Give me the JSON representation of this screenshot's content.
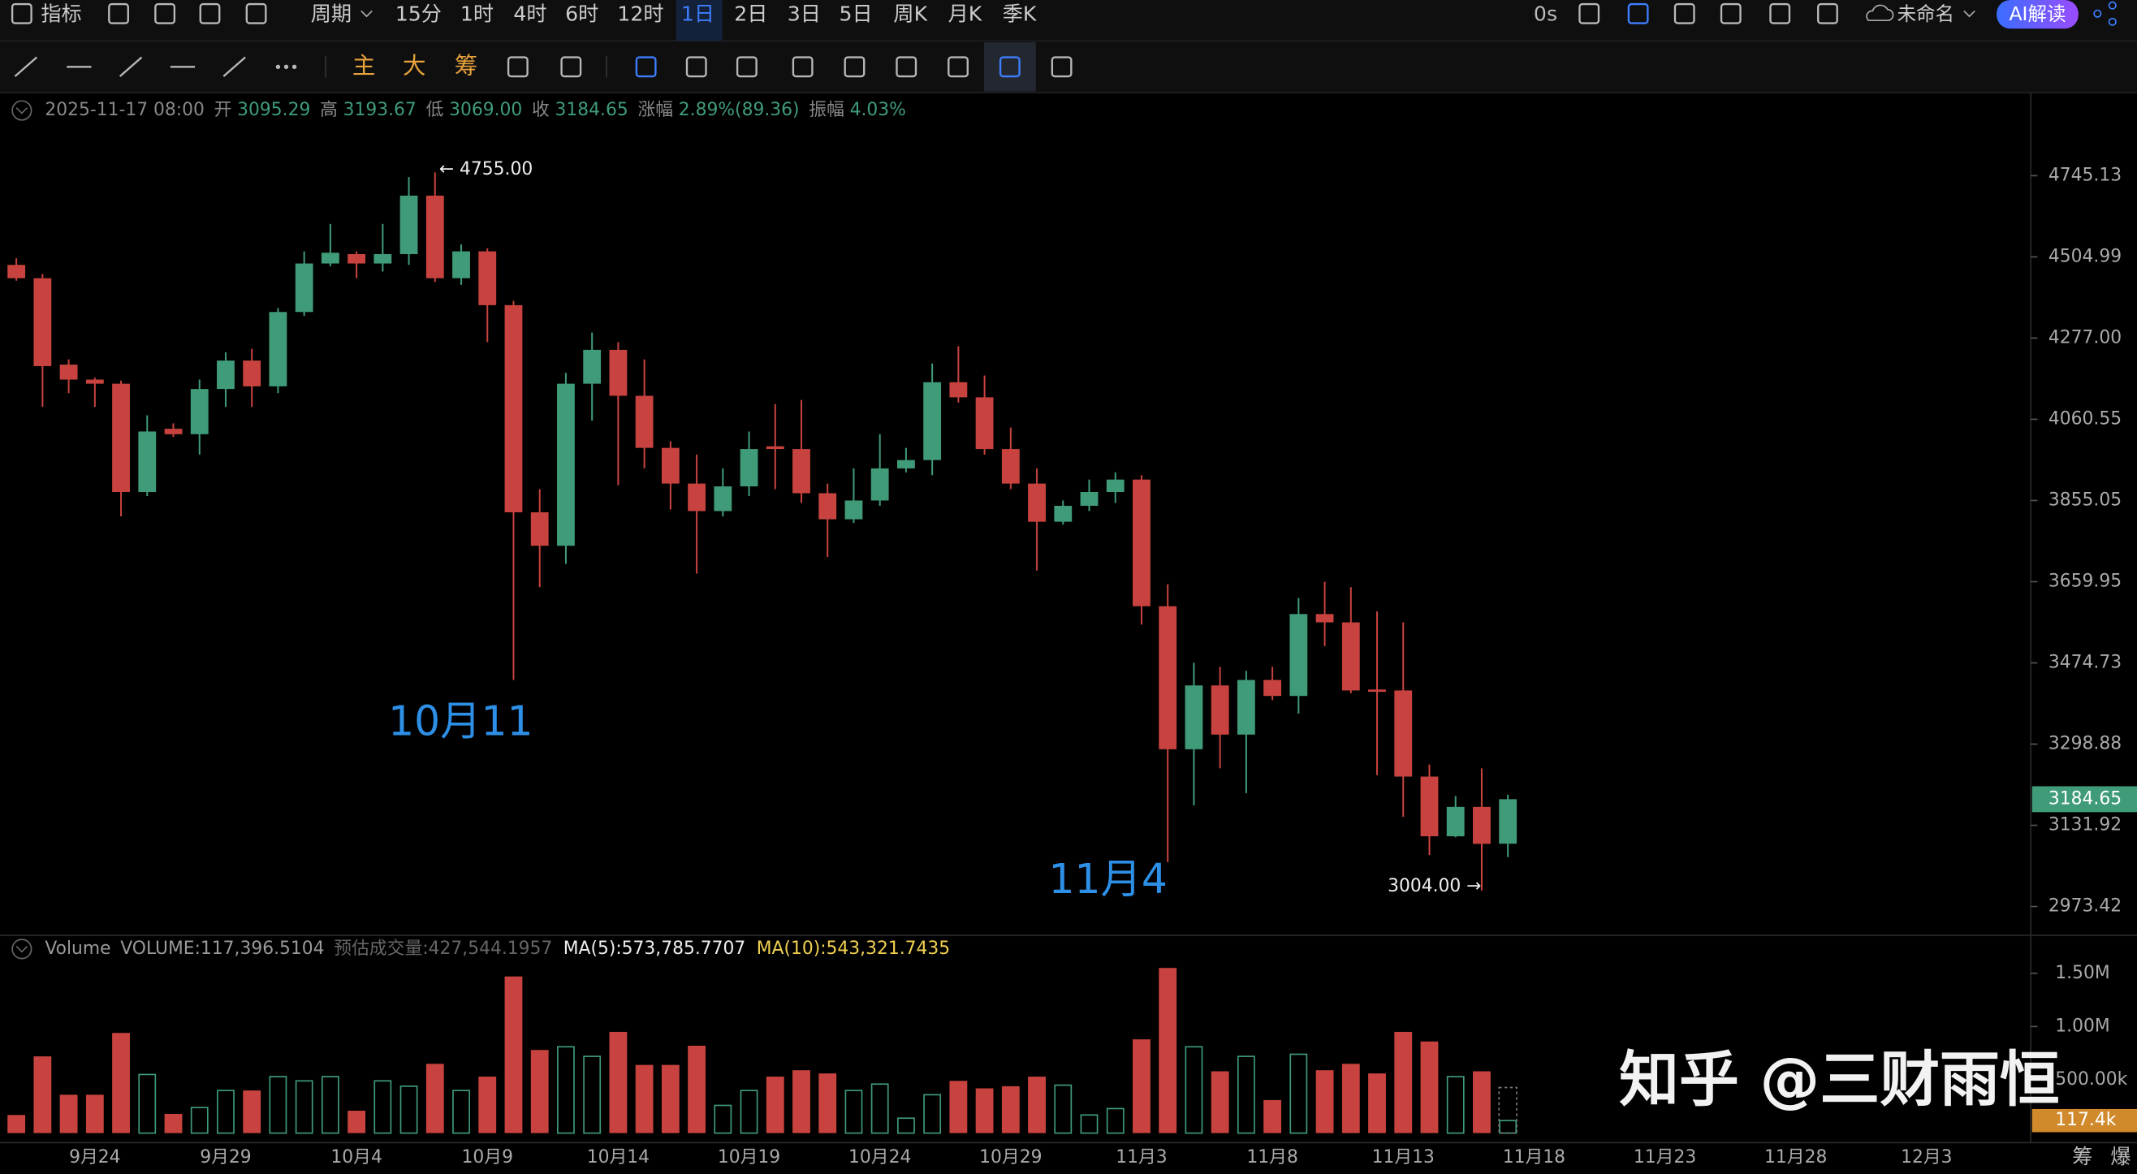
{
  "toolbar": {
    "indicator": "指标",
    "period": "周期",
    "intervals": [
      "15分",
      "1时",
      "4时",
      "6时",
      "12时",
      "1日",
      "2日",
      "3日",
      "5日",
      "周K",
      "月K",
      "季K"
    ],
    "selected_interval": 5,
    "timer": "0s",
    "file_name": "未命名",
    "ai_button": "AI解读",
    "main_tools": [
      "主",
      "大",
      "筹"
    ]
  },
  "corner_buttons": [
    "筹",
    "爆"
  ],
  "watermark": "知乎 @三财雨恒",
  "chart_data": [
    {
      "type": "candlestick",
      "log_scale": true,
      "up_color": "#3f9b78",
      "down_color": "#c8433f",
      "info": {
        "time": "2025-11-17 08:00",
        "items": [
          {
            "label": "开",
            "value": "3095.29"
          },
          {
            "label": "高",
            "value": "3193.67"
          },
          {
            "label": "低",
            "value": "3069.00"
          },
          {
            "label": "收",
            "value": "3184.65"
          },
          {
            "label": "涨幅",
            "value": "2.89%(89.36)"
          },
          {
            "label": "振幅",
            "value": "4.03%"
          }
        ]
      },
      "annotations": [
        "← 4755.00",
        "3004.00 →"
      ],
      "notes": [
        "10月11",
        "11月4"
      ],
      "categories": [
        null,
        null,
        null,
        "9月24",
        null,
        null,
        null,
        null,
        "9月29",
        null,
        null,
        null,
        null,
        "10月4",
        null,
        null,
        null,
        null,
        "10月9",
        null,
        null,
        null,
        null,
        "10月14",
        null,
        null,
        null,
        null,
        "10月19",
        null,
        null,
        null,
        null,
        "10月24",
        null,
        null,
        null,
        null,
        "10月29",
        null,
        null,
        null,
        null,
        "11月3",
        null,
        null,
        null,
        null,
        "11月8",
        null,
        null,
        null,
        null,
        "11月13",
        null,
        null,
        null,
        null,
        "11月18",
        null,
        null,
        null,
        null,
        "11月23",
        null,
        null,
        null,
        null,
        "11月28",
        null,
        null,
        null,
        null,
        "12月3"
      ],
      "open": [
        4482,
        4444,
        4205,
        4165,
        4154,
        3876,
        4036,
        4022,
        4140,
        4216,
        4147,
        4349,
        4486,
        4513,
        4486,
        4513,
        4685,
        4444,
        4521,
        4368,
        3826,
        3745,
        4154,
        4245,
        4122,
        3987,
        3897,
        3829,
        3890,
        3991,
        3984,
        3873,
        3809,
        3855,
        3935,
        3956,
        4158,
        4118,
        3984,
        3897,
        3803,
        3842,
        3876,
        3907,
        3603,
        3288,
        3425,
        3319,
        3437,
        3402,
        3585,
        3566,
        3416,
        3414,
        3231,
        3110,
        3169,
        3095.29,
        null,
        null,
        null,
        null,
        null,
        null,
        null,
        null,
        null,
        null,
        null,
        null,
        null,
        null,
        null,
        null
      ],
      "high": [
        4501,
        4456,
        4219,
        4170,
        4162,
        4071,
        4050,
        4165,
        4238,
        4248,
        4360,
        4521,
        4601,
        4521,
        4601,
        4741,
        4755,
        4541,
        4530,
        4380,
        3883,
        4183,
        4292,
        4266,
        4219,
        4004,
        3970,
        3935,
        4029,
        4100,
        4111,
        3897,
        3935,
        4022,
        3987,
        4208,
        4255,
        4176,
        4039,
        3935,
        3855,
        3907,
        3925,
        3918,
        3654,
        3475,
        3466,
        3457,
        3466,
        3622,
        3660,
        3647,
        3591,
        3566,
        3256,
        3191,
        3248,
        3193.67,
        null,
        null,
        null,
        null,
        null,
        null,
        null,
        null,
        null,
        null,
        null,
        null,
        null,
        null,
        null,
        null
      ],
      "low": [
        4437,
        4093,
        4129,
        4093,
        3816,
        3866,
        4015,
        3970,
        4093,
        4093,
        4129,
        4338,
        4478,
        4444,
        4463,
        4482,
        4433,
        4425,
        4266,
        3437,
        3647,
        3702,
        4057,
        3893,
        3935,
        3833,
        3679,
        3816,
        3866,
        3883,
        3849,
        3718,
        3800,
        3842,
        3925,
        3918,
        4104,
        3970,
        3883,
        3686,
        3796,
        3829,
        3849,
        3561,
        3059,
        3172,
        3248,
        3197,
        3393,
        3364,
        3512,
        3408,
        3234,
        3149,
        3073,
        3108,
        3004,
        3069,
        null,
        null,
        null,
        null,
        null,
        null,
        null,
        null,
        null,
        null,
        null,
        null,
        null,
        null,
        null,
        null
      ],
      "close": [
        4444,
        4201,
        4165,
        4154,
        3876,
        4029,
        4022,
        4140,
        4216,
        4147,
        4349,
        4486,
        4517,
        4486,
        4513,
        4685,
        4444,
        4521,
        4368,
        3826,
        3745,
        4154,
        4245,
        4122,
        3987,
        3897,
        3829,
        3890,
        3984,
        3984,
        3873,
        3809,
        3855,
        3935,
        3956,
        4158,
        4118,
        3984,
        3897,
        3803,
        3842,
        3876,
        3907,
        3603,
        3288,
        3425,
        3319,
        3437,
        3402,
        3585,
        3566,
        3414,
        3411,
        3231,
        3110,
        3169,
        3095,
        3184.65,
        null,
        null,
        null,
        null,
        null,
        null,
        null,
        null,
        null,
        null,
        null,
        null,
        null,
        null,
        null,
        null
      ],
      "ylim": [
        2919,
        4995
      ],
      "yticks": [
        4745.13,
        4504.99,
        {
          "value": 4277,
          "label": "4277.00"
        },
        4060.55,
        3855.05,
        3659.95,
        3474.73,
        3298.88,
        3131.92,
        2973.42
      ]
    },
    {
      "type": "bar",
      "legend": {
        "title": "Volume",
        "current": "VOLUME:117,396.5104",
        "estimate": "预估成交量:427,544.1957",
        "ma5": "MA(5):573,785.7707",
        "ma10": "MA(10):543,321.7435"
      },
      "values": [
        170000,
        720000,
        360000,
        360000,
        940000,
        550000,
        180000,
        240000,
        400000,
        400000,
        530000,
        490000,
        530000,
        210000,
        490000,
        440000,
        650000,
        400000,
        530000,
        1470000,
        780000,
        810000,
        720000,
        950000,
        640000,
        640000,
        820000,
        260000,
        400000,
        530000,
        590000,
        560000,
        400000,
        460000,
        140000,
        360000,
        490000,
        420000,
        440000,
        530000,
        450000,
        170000,
        230000,
        880000,
        1550000,
        810000,
        580000,
        720000,
        310000,
        740000,
        590000,
        650000,
        560000,
        950000,
        860000,
        530000,
        580000,
        117396.5104
      ],
      "estimated_volume": 427544.1957,
      "current_label": "117.4k",
      "ylim": [
        0,
        1830000
      ],
      "yticks": [
        {
          "value": 1500000,
          "label": "1.50M"
        },
        {
          "value": 1000000,
          "label": "1.00M"
        },
        {
          "value": 500000,
          "label": "500.00k"
        }
      ]
    }
  ]
}
